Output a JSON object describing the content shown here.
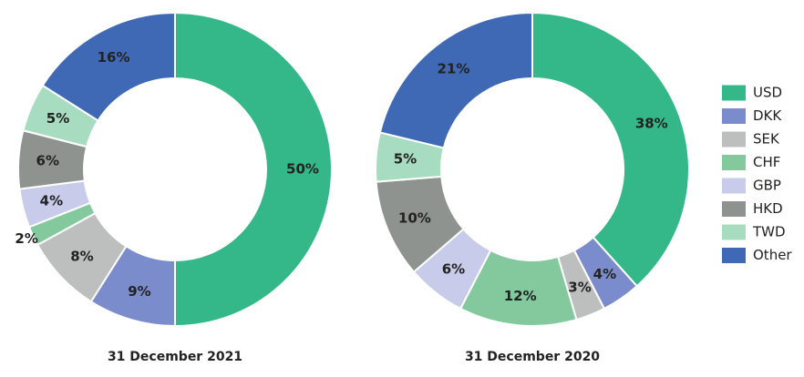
{
  "chart_data": [
    {
      "type": "pie",
      "donut": true,
      "title": "31 December 2021",
      "categories": [
        "USD",
        "DKK",
        "SEK",
        "CHF",
        "GBP",
        "HKD",
        "TWD",
        "Other"
      ],
      "values": [
        50,
        9,
        8,
        2,
        4,
        6,
        5,
        16
      ],
      "value_labels": [
        "50%",
        "9%",
        "8%",
        "2%",
        "4%",
        "6%",
        "5%",
        "16%"
      ],
      "colors": [
        "#34b88a",
        "#7b8ccc",
        "#bcbfbe",
        "#84c99e",
        "#c8cbe9",
        "#8e9390",
        "#a8dcc0",
        "#3f69b5"
      ]
    },
    {
      "type": "pie",
      "donut": true,
      "title": "31 December 2020",
      "categories": [
        "USD",
        "DKK",
        "SEK",
        "CHF",
        "GBP",
        "HKD",
        "TWD",
        "Other"
      ],
      "values": [
        38,
        4,
        3,
        12,
        6,
        10,
        5,
        21
      ],
      "value_labels": [
        "38%",
        "4%",
        "3%",
        "12%",
        "6%",
        "10%",
        "5%",
        "21%"
      ],
      "colors": [
        "#34b88a",
        "#7b8ccc",
        "#bcbfbe",
        "#84c99e",
        "#c8cbe9",
        "#8e9390",
        "#a8dcc0",
        "#3f69b5"
      ]
    }
  ]
}
